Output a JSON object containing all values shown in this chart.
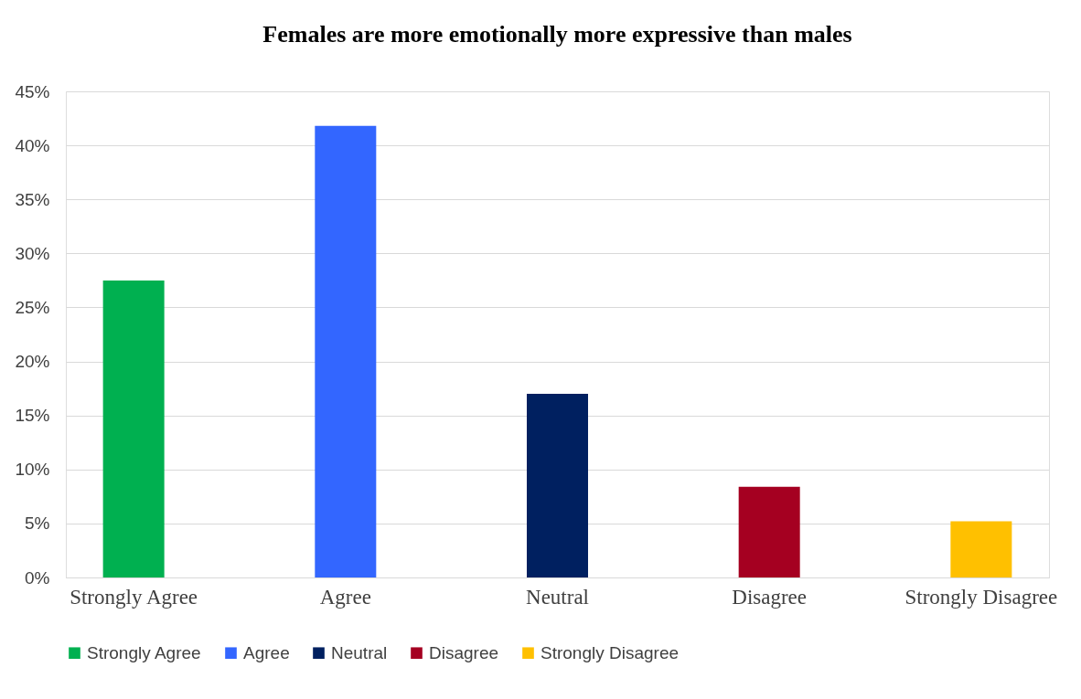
{
  "chart_data": {
    "type": "bar",
    "title": "Females are more emotionally more expressive than males",
    "categories": [
      "Strongly Agree",
      "Agree",
      "Neutral",
      "Disagree",
      "Strongly Disagree"
    ],
    "series": [
      {
        "name": "Strongly Agree",
        "color": "#00b050",
        "values": [
          27.5,
          null,
          null,
          null,
          null
        ]
      },
      {
        "name": "Agree",
        "color": "#3366ff",
        "values": [
          null,
          41.8,
          null,
          null,
          null
        ]
      },
      {
        "name": "Neutral",
        "color": "#002060",
        "values": [
          null,
          null,
          17.0,
          null,
          null
        ]
      },
      {
        "name": "Disagree",
        "color": "#a50021",
        "values": [
          null,
          null,
          null,
          8.4,
          null
        ]
      },
      {
        "name": "Strongly Disagree",
        "color": "#ffc000",
        "values": [
          null,
          null,
          null,
          null,
          5.2
        ]
      }
    ],
    "ylim": [
      0,
      45
    ],
    "yticks": [
      {
        "value": 0,
        "label": "0%"
      },
      {
        "value": 5,
        "label": "5%"
      },
      {
        "value": 10,
        "label": "10%"
      },
      {
        "value": 15,
        "label": "15%"
      },
      {
        "value": 20,
        "label": "20%"
      },
      {
        "value": 25,
        "label": "25%"
      },
      {
        "value": 30,
        "label": "30%"
      },
      {
        "value": 35,
        "label": "35%"
      },
      {
        "value": 40,
        "label": "40%"
      },
      {
        "value": 45,
        "label": "45%"
      }
    ],
    "grid": "y",
    "legend": "bottom"
  }
}
